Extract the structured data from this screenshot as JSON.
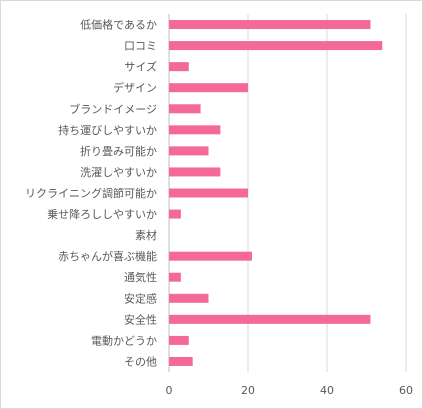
{
  "chart_data": {
    "type": "bar",
    "orientation": "horizontal",
    "categories": [
      "低価格であるか",
      "口コミ",
      "サイズ",
      "デザイン",
      "ブランドイメージ",
      "持ち運びしやすいか",
      "折り畳み可能か",
      "洗濯しやすいか",
      "リクライニング調節可能か",
      "乗せ降ろししやすいか",
      "素材",
      "赤ちゃんが喜ぶ機能",
      "通気性",
      "安定感",
      "安全性",
      "電動かどうか",
      "その他"
    ],
    "values": [
      51,
      54,
      5,
      20,
      8,
      13,
      10,
      13,
      20,
      3,
      0,
      21,
      3,
      10,
      51,
      5,
      6
    ],
    "xlim": [
      0,
      60
    ],
    "xticks": [
      0,
      20,
      40,
      60
    ],
    "grid": true,
    "bar_color": "#f4689a",
    "title": "",
    "xlabel": "",
    "ylabel": ""
  }
}
